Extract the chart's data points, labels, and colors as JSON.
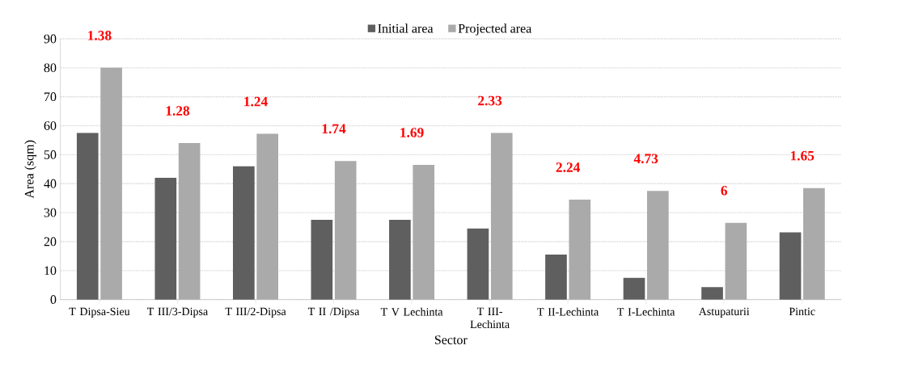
{
  "chart_data": {
    "type": "bar",
    "xlabel": "Sector",
    "ylabel": "Area (sqm)",
    "categories": [
      "T Dipsa-Sieu",
      "T III/3-Dipsa",
      "T III/2-Dipsa",
      "T II /Dipsa",
      "T V Lechinta",
      "T III-Lechinta",
      "T II-Lechinta",
      "T I-Lechinta",
      "Astupaturii",
      "Pintic"
    ],
    "series": [
      {
        "name": "Initial area",
        "color": "#5f5f5f",
        "values": [
          57.5,
          42,
          46,
          27.5,
          27.5,
          24.5,
          15.5,
          7.5,
          4.3,
          23.2
        ]
      },
      {
        "name": "Projected area",
        "color": "#aaaaaa",
        "values": [
          80,
          54,
          57.2,
          47.8,
          46.5,
          57.5,
          34.5,
          37.5,
          26.5,
          38.5
        ]
      }
    ],
    "annotations": [
      {
        "text": "1.38",
        "x": "T Dipsa-Sieu",
        "y": 80
      },
      {
        "text": "1.28",
        "x": "T III/3-Dipsa",
        "y": 54
      },
      {
        "text": "1.24",
        "x": "T III/2-Dipsa",
        "y": 57.2
      },
      {
        "text": "1.74",
        "x": "T II /Dipsa",
        "y": 47.8
      },
      {
        "text": "1.69",
        "x": "T V Lechinta",
        "y": 46.5
      },
      {
        "text": "2.33",
        "x": "T III-Lechinta",
        "y": 57.5
      },
      {
        "text": "2.24",
        "x": "T II-Lechinta",
        "y": 34.5
      },
      {
        "text": "4.73",
        "x": "T I-Lechinta",
        "y": 37.5
      },
      {
        "text": "6",
        "x": "Astupaturii",
        "y": 26.5
      },
      {
        "text": "1.65",
        "x": "Pintic",
        "y": 38.5
      }
    ],
    "ylim": [
      0,
      90
    ],
    "yticks": [
      0,
      10,
      20,
      30,
      40,
      50,
      60,
      70,
      80,
      90
    ],
    "grid": "y",
    "legend": "top"
  }
}
